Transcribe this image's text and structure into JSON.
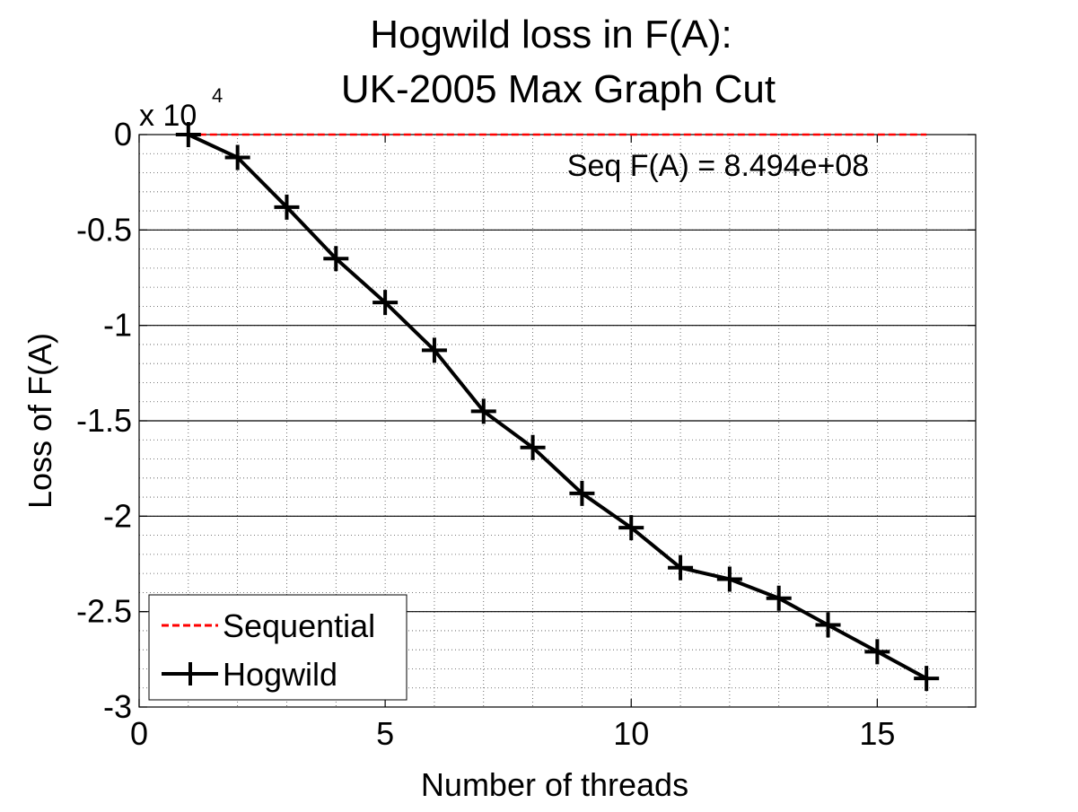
{
  "chart_data": {
    "type": "line",
    "title_line1": "Hogwild loss in F(A):",
    "title_line2": "UK-2005 Max Graph Cut",
    "xlabel": "Number of threads",
    "ylabel": "Loss of F(A)",
    "y_exponent_base": "x 10",
    "y_exponent_power": "4",
    "xlim": [
      0,
      17
    ],
    "ylim": [
      -3,
      0
    ],
    "xticks": [
      0,
      5,
      10,
      15
    ],
    "xtick_labels": [
      "0",
      "5",
      "10",
      "15"
    ],
    "yticks": [
      0,
      -0.5,
      -1,
      -1.5,
      -2,
      -2.5,
      -3
    ],
    "ytick_labels": [
      "0",
      "-0.5",
      "-1",
      "-1.5",
      "-2",
      "-2.5",
      "-3"
    ],
    "grid": true,
    "annotation": "Seq F(A) = 8.494e+08",
    "legend_position": "bottom-left",
    "series": [
      {
        "name": "Sequential",
        "color": "#ff0000",
        "style": "dashed",
        "x": [
          1,
          16
        ],
        "values": [
          0,
          0
        ]
      },
      {
        "name": "Hogwild",
        "color": "#000000",
        "style": "solid",
        "marker": "plus",
        "x": [
          1,
          2,
          3,
          4,
          5,
          6,
          7,
          8,
          9,
          10,
          11,
          12,
          13,
          14,
          15,
          16
        ],
        "values": [
          0,
          -0.12,
          -0.38,
          -0.65,
          -0.88,
          -1.13,
          -1.45,
          -1.64,
          -1.88,
          -2.06,
          -2.27,
          -2.33,
          -2.43,
          -2.57,
          -2.71,
          -2.85
        ]
      }
    ]
  }
}
